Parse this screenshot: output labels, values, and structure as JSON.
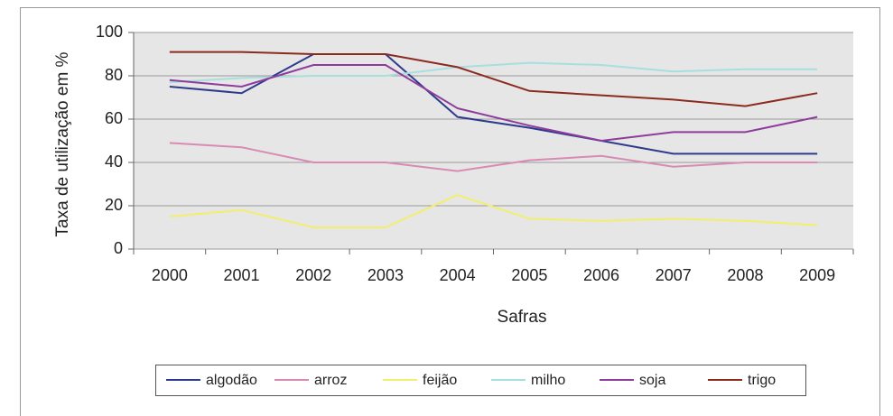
{
  "chart_data": {
    "type": "line",
    "x_label": "Safras",
    "y_label": "Taxa de utilização em %",
    "categories": [
      "2000",
      "2001",
      "2002",
      "2003",
      "2004",
      "2005",
      "2006",
      "2007",
      "2008",
      "2009"
    ],
    "series": [
      {
        "name": "algodão",
        "color": "#2e3a8c",
        "values": [
          75,
          72,
          90,
          90,
          61,
          56,
          50,
          44,
          44,
          44
        ]
      },
      {
        "name": "arroz",
        "color": "#d98ab4",
        "values": [
          49,
          47,
          40,
          40,
          36,
          41,
          43,
          38,
          40,
          40
        ]
      },
      {
        "name": "feijão",
        "color": "#f2ee6e",
        "values": [
          15,
          18,
          10,
          10,
          25,
          14,
          13,
          14,
          13,
          11
        ]
      },
      {
        "name": "milho",
        "color": "#a8dede",
        "values": [
          77,
          79,
          80,
          80,
          84,
          86,
          85,
          82,
          83,
          83
        ]
      },
      {
        "name": "soja",
        "color": "#8e3c9c",
        "values": [
          78,
          75,
          85,
          85,
          65,
          57,
          50,
          54,
          54,
          61
        ]
      },
      {
        "name": "trigo",
        "color": "#8b2a1f",
        "values": [
          91,
          91,
          90,
          90,
          84,
          73,
          71,
          69,
          66,
          72
        ]
      }
    ],
    "ylim": [
      0,
      100
    ],
    "yticks": [
      0,
      20,
      40,
      60,
      80,
      100
    ],
    "grid": true,
    "legend": "bottom"
  }
}
